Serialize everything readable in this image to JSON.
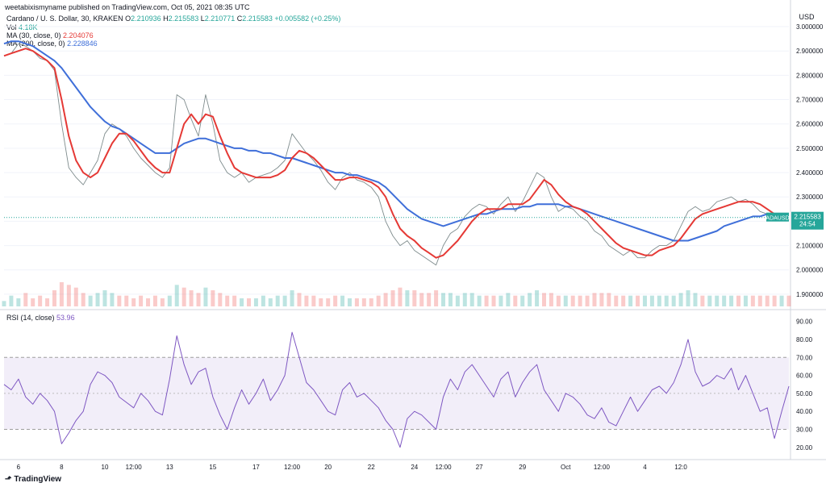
{
  "attribution": "weetabixismyname published on TradingView.com, Oct 05, 2021 08:35 UTC",
  "brand": "TradingView",
  "colors": {
    "up": "#26a69a",
    "down": "#ef5350",
    "ma30": "#e53935",
    "ma200": "#3f6fd9",
    "rsi": "#7e57c2",
    "rsi_band": "#ede7f6",
    "last": "#26a69a"
  },
  "legend": {
    "symbol": "Cardano / U. S. Dollar, 30, KRAKEN",
    "ohlc": {
      "o_label": "O",
      "o": "2.210936",
      "h_label": "H",
      "h": "2.215583",
      "l_label": "L",
      "l": "2.210771",
      "c_label": "C",
      "c": "2.215583",
      "change": "+0.005582 (+0.25%)"
    },
    "vol_label": "Vol",
    "vol": "4.18K",
    "ma30_label": "MA (30, close, 0)",
    "ma30": "2.204076",
    "ma200_label": "MA (200, close, 0)",
    "ma200": "2.228846",
    "rsi_label": "RSI (14, close)",
    "rsi": "53.96"
  },
  "chart_data": {
    "type": "line",
    "price": {
      "currency": "USD",
      "ylim": [
        1.85,
        3.03
      ],
      "yticks": [
        "3.000000",
        "2.900000",
        "2.800000",
        "2.700000",
        "2.600000",
        "2.500000",
        "2.400000",
        "2.300000",
        "2.200000",
        "2.100000",
        "2.000000",
        "1.900000"
      ],
      "close": [
        2.88,
        2.89,
        2.93,
        2.92,
        2.9,
        2.87,
        2.86,
        2.82,
        2.6,
        2.42,
        2.38,
        2.35,
        2.4,
        2.45,
        2.56,
        2.6,
        2.58,
        2.55,
        2.5,
        2.46,
        2.43,
        2.4,
        2.38,
        2.42,
        2.72,
        2.7,
        2.62,
        2.55,
        2.72,
        2.6,
        2.45,
        2.4,
        2.38,
        2.4,
        2.36,
        2.38,
        2.39,
        2.4,
        2.42,
        2.45,
        2.56,
        2.52,
        2.48,
        2.45,
        2.41,
        2.36,
        2.33,
        2.38,
        2.4,
        2.37,
        2.36,
        2.34,
        2.3,
        2.2,
        2.14,
        2.1,
        2.12,
        2.08,
        2.06,
        2.04,
        2.02,
        2.1,
        2.15,
        2.17,
        2.22,
        2.25,
        2.27,
        2.26,
        2.23,
        2.27,
        2.3,
        2.24,
        2.28,
        2.34,
        2.4,
        2.38,
        2.3,
        2.24,
        2.26,
        2.25,
        2.22,
        2.2,
        2.16,
        2.14,
        2.1,
        2.08,
        2.06,
        2.08,
        2.05,
        2.05,
        2.08,
        2.1,
        2.1,
        2.12,
        2.18,
        2.24,
        2.26,
        2.24,
        2.25,
        2.28,
        2.29,
        2.3,
        2.28,
        2.29,
        2.27,
        2.24,
        2.23,
        2.21,
        2.22,
        2.215
      ],
      "ma30": [
        2.88,
        2.89,
        2.9,
        2.91,
        2.9,
        2.88,
        2.86,
        2.83,
        2.7,
        2.55,
        2.45,
        2.4,
        2.38,
        2.4,
        2.46,
        2.52,
        2.56,
        2.56,
        2.53,
        2.49,
        2.45,
        2.42,
        2.4,
        2.4,
        2.5,
        2.6,
        2.64,
        2.6,
        2.64,
        2.63,
        2.55,
        2.48,
        2.42,
        2.4,
        2.39,
        2.38,
        2.38,
        2.38,
        2.39,
        2.41,
        2.46,
        2.49,
        2.48,
        2.46,
        2.43,
        2.4,
        2.37,
        2.37,
        2.38,
        2.38,
        2.37,
        2.36,
        2.34,
        2.3,
        2.23,
        2.17,
        2.14,
        2.12,
        2.09,
        2.07,
        2.05,
        2.06,
        2.09,
        2.12,
        2.16,
        2.2,
        2.23,
        2.25,
        2.25,
        2.25,
        2.27,
        2.27,
        2.27,
        2.29,
        2.33,
        2.37,
        2.35,
        2.31,
        2.28,
        2.26,
        2.25,
        2.23,
        2.2,
        2.17,
        2.14,
        2.11,
        2.09,
        2.08,
        2.07,
        2.06,
        2.06,
        2.08,
        2.09,
        2.1,
        2.13,
        2.17,
        2.21,
        2.23,
        2.24,
        2.25,
        2.26,
        2.27,
        2.28,
        2.28,
        2.28,
        2.27,
        2.25,
        2.23,
        2.21,
        2.204
      ],
      "ma200": [
        2.93,
        2.94,
        2.94,
        2.93,
        2.92,
        2.9,
        2.88,
        2.86,
        2.83,
        2.79,
        2.75,
        2.71,
        2.67,
        2.64,
        2.61,
        2.59,
        2.58,
        2.56,
        2.54,
        2.52,
        2.5,
        2.48,
        2.48,
        2.48,
        2.5,
        2.52,
        2.53,
        2.54,
        2.54,
        2.53,
        2.52,
        2.51,
        2.5,
        2.5,
        2.49,
        2.49,
        2.48,
        2.48,
        2.47,
        2.46,
        2.46,
        2.45,
        2.44,
        2.43,
        2.42,
        2.41,
        2.4,
        2.4,
        2.39,
        2.39,
        2.38,
        2.37,
        2.36,
        2.34,
        2.31,
        2.28,
        2.25,
        2.23,
        2.21,
        2.2,
        2.19,
        2.18,
        2.19,
        2.2,
        2.21,
        2.22,
        2.23,
        2.23,
        2.24,
        2.25,
        2.25,
        2.25,
        2.26,
        2.26,
        2.27,
        2.27,
        2.27,
        2.27,
        2.26,
        2.26,
        2.25,
        2.24,
        2.23,
        2.22,
        2.21,
        2.2,
        2.19,
        2.18,
        2.17,
        2.16,
        2.15,
        2.14,
        2.13,
        2.12,
        2.12,
        2.12,
        2.13,
        2.14,
        2.15,
        2.16,
        2.18,
        2.19,
        2.2,
        2.21,
        2.22,
        2.22,
        2.23,
        2.23,
        2.23,
        2.229
      ],
      "last_symbol": "ADAUSD",
      "last_price": "2.215583",
      "last_timer": "24:54"
    },
    "volume": [
      2,
      4,
      3,
      5,
      3,
      4,
      3,
      6,
      9,
      8,
      7,
      5,
      4,
      5,
      6,
      5,
      4,
      4,
      3,
      4,
      3,
      4,
      3,
      4,
      8,
      7,
      6,
      5,
      7,
      6,
      5,
      4,
      4,
      3,
      3,
      3,
      4,
      3,
      4,
      4,
      6,
      5,
      4,
      4,
      3,
      3,
      4,
      4,
      3,
      3,
      3,
      3,
      4,
      5,
      6,
      7,
      6,
      6,
      5,
      5,
      6,
      5,
      5,
      4,
      5,
      5,
      4,
      4,
      4,
      4,
      5,
      4,
      4,
      5,
      6,
      5,
      5,
      4,
      4,
      4,
      4,
      4,
      5,
      5,
      5,
      4,
      4,
      4,
      4,
      4,
      4,
      4,
      4,
      4,
      5,
      6,
      5,
      4,
      4,
      4,
      4,
      4,
      4,
      4,
      4,
      4,
      4,
      4,
      4,
      4
    ],
    "rsi": {
      "ylim": [
        15,
        93
      ],
      "yticks": [
        "90.00",
        "80.00",
        "70.00",
        "60.00",
        "50.00",
        "40.00",
        "30.00",
        "20.00"
      ],
      "band": [
        30,
        70
      ],
      "mid": 50,
      "values": [
        55,
        52,
        58,
        48,
        44,
        50,
        46,
        40,
        22,
        28,
        35,
        40,
        55,
        62,
        60,
        56,
        48,
        45,
        42,
        50,
        46,
        40,
        38,
        58,
        82,
        66,
        55,
        62,
        64,
        48,
        38,
        30,
        42,
        52,
        44,
        50,
        58,
        46,
        52,
        60,
        84,
        70,
        56,
        52,
        46,
        40,
        38,
        52,
        56,
        48,
        50,
        46,
        42,
        35,
        30,
        20,
        36,
        40,
        38,
        34,
        30,
        48,
        58,
        52,
        62,
        66,
        60,
        54,
        48,
        58,
        62,
        48,
        56,
        62,
        66,
        52,
        46,
        40,
        50,
        48,
        44,
        38,
        36,
        42,
        34,
        32,
        40,
        48,
        40,
        46,
        52,
        54,
        50,
        56,
        66,
        80,
        62,
        54,
        56,
        60,
        58,
        64,
        52,
        60,
        50,
        40,
        42,
        25,
        40,
        54
      ]
    },
    "x_ticks": [
      {
        "label": "6",
        "i": 2
      },
      {
        "label": "8",
        "i": 8
      },
      {
        "label": "10",
        "i": 14
      },
      {
        "label": "12:00",
        "i": 18
      },
      {
        "label": "13",
        "i": 23
      },
      {
        "label": "15",
        "i": 29
      },
      {
        "label": "17",
        "i": 35
      },
      {
        "label": "12:00",
        "i": 40
      },
      {
        "label": "20",
        "i": 45
      },
      {
        "label": "22",
        "i": 51
      },
      {
        "label": "24",
        "i": 57
      },
      {
        "label": "12:00",
        "i": 61
      },
      {
        "label": "27",
        "i": 66
      },
      {
        "label": "29",
        "i": 72
      },
      {
        "label": "Oct",
        "i": 78
      },
      {
        "label": "12:00",
        "i": 83
      },
      {
        "label": "4",
        "i": 89
      },
      {
        "label": "12:0",
        "i": 94
      }
    ]
  }
}
